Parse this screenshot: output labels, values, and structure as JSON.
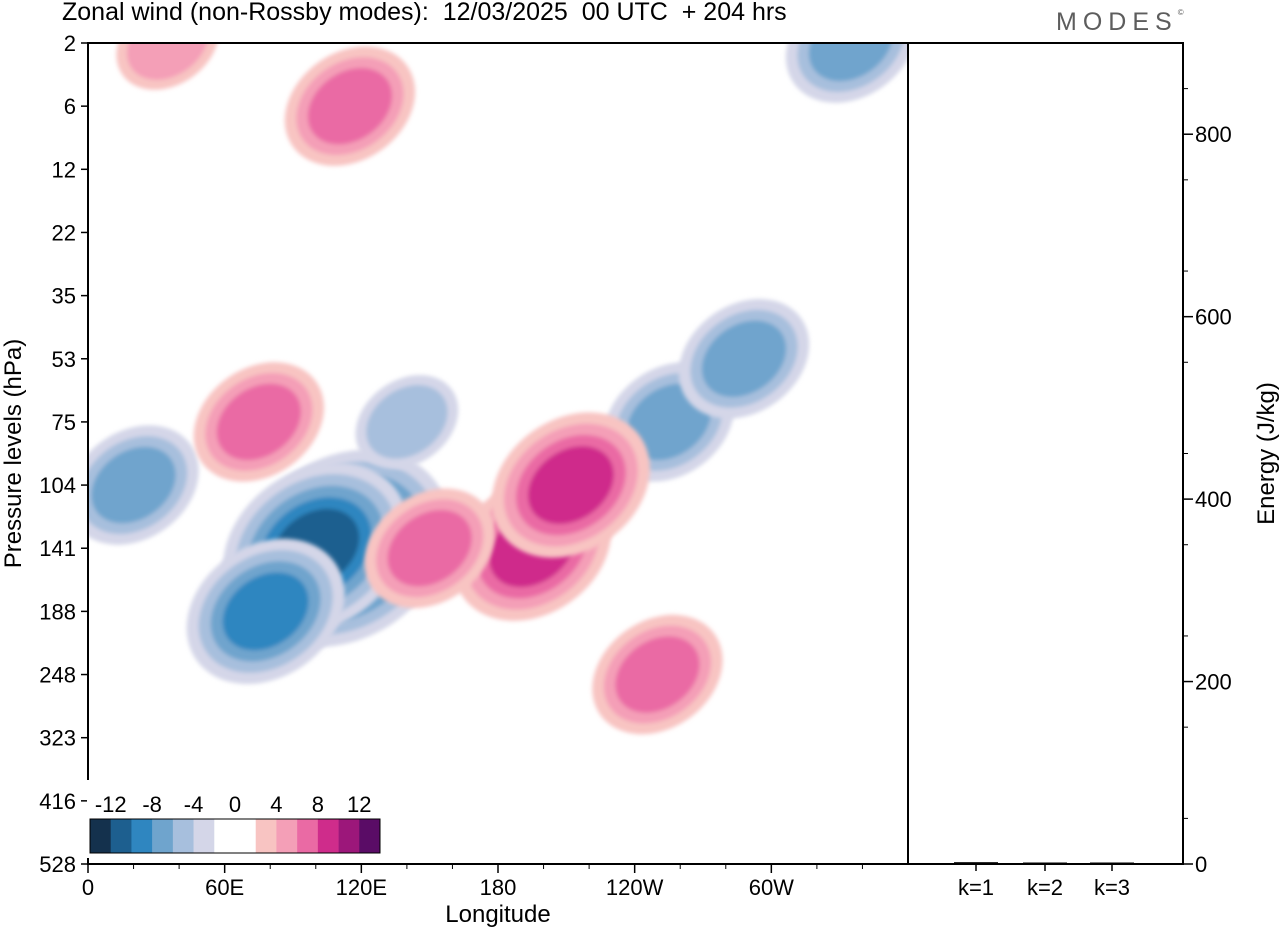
{
  "header": {
    "title": "Zonal wind (non-Rossby modes):  12/03/2025  00 UTC  + 204 hrs",
    "brand": "MODES",
    "brand_mark": "©"
  },
  "colors": {
    "neg": [
      "#14314d",
      "#1d5f8f",
      "#2f86c0",
      "#6fa4cd",
      "#a7bfdd",
      "#d4d6e8"
    ],
    "zero": "#ffffff",
    "pos": [
      "#f8c4c2",
      "#f49fb7",
      "#ea6aa4",
      "#cf2c8b",
      "#9c177a",
      "#5a0c66"
    ],
    "bar": "#000000"
  },
  "chart_data": [
    {
      "type": "heatmap",
      "title": "Zonal wind (non-Rossby modes):  12/03/2025  00 UTC  + 204 hrs",
      "xlabel": "Longitude",
      "ylabel": "Pressure levels (hPa)",
      "x_ticks": [
        "0",
        "60E",
        "120E",
        "180",
        "120W",
        "60W"
      ],
      "y_ticks": [
        "2",
        "6",
        "12",
        "22",
        "35",
        "53",
        "75",
        "104",
        "141",
        "188",
        "248",
        "323",
        "416",
        "528"
      ],
      "colorbar_ticks": [
        "-12",
        "-8",
        "-4",
        "0",
        "4",
        "8",
        "12"
      ],
      "features": [
        {
          "lon": 112,
          "level": "141",
          "value": -14
        },
        {
          "lon": 100,
          "level": "141",
          "value": -10
        },
        {
          "lon": 78,
          "level": "188",
          "value": -8
        },
        {
          "lon": 20,
          "level": "104",
          "value": -6
        },
        {
          "lon": 140,
          "level": "75",
          "value": -4
        },
        {
          "lon": 255,
          "level": "75",
          "value": -6
        },
        {
          "lon": 288,
          "level": "53",
          "value": -6
        },
        {
          "lon": 335,
          "level": "2",
          "value": -6
        },
        {
          "lon": 195,
          "level": "141",
          "value": 8
        },
        {
          "lon": 212,
          "level": "104",
          "value": 7
        },
        {
          "lon": 150,
          "level": "141",
          "value": 5
        },
        {
          "lon": 250,
          "level": "248",
          "value": 5
        },
        {
          "lon": 75,
          "level": "75",
          "value": 6
        },
        {
          "lon": 115,
          "level": "6",
          "value": 5
        },
        {
          "lon": 35,
          "level": "2",
          "value": 4
        }
      ]
    },
    {
      "type": "bar",
      "categories": [
        "k=1",
        "k=2",
        "k=3"
      ],
      "values": [
        2,
        1,
        1
      ],
      "ylabel": "Energy (J/kg)",
      "ylim": [
        0,
        900
      ],
      "y_ticks": [
        0,
        200,
        400,
        600,
        800
      ]
    }
  ]
}
